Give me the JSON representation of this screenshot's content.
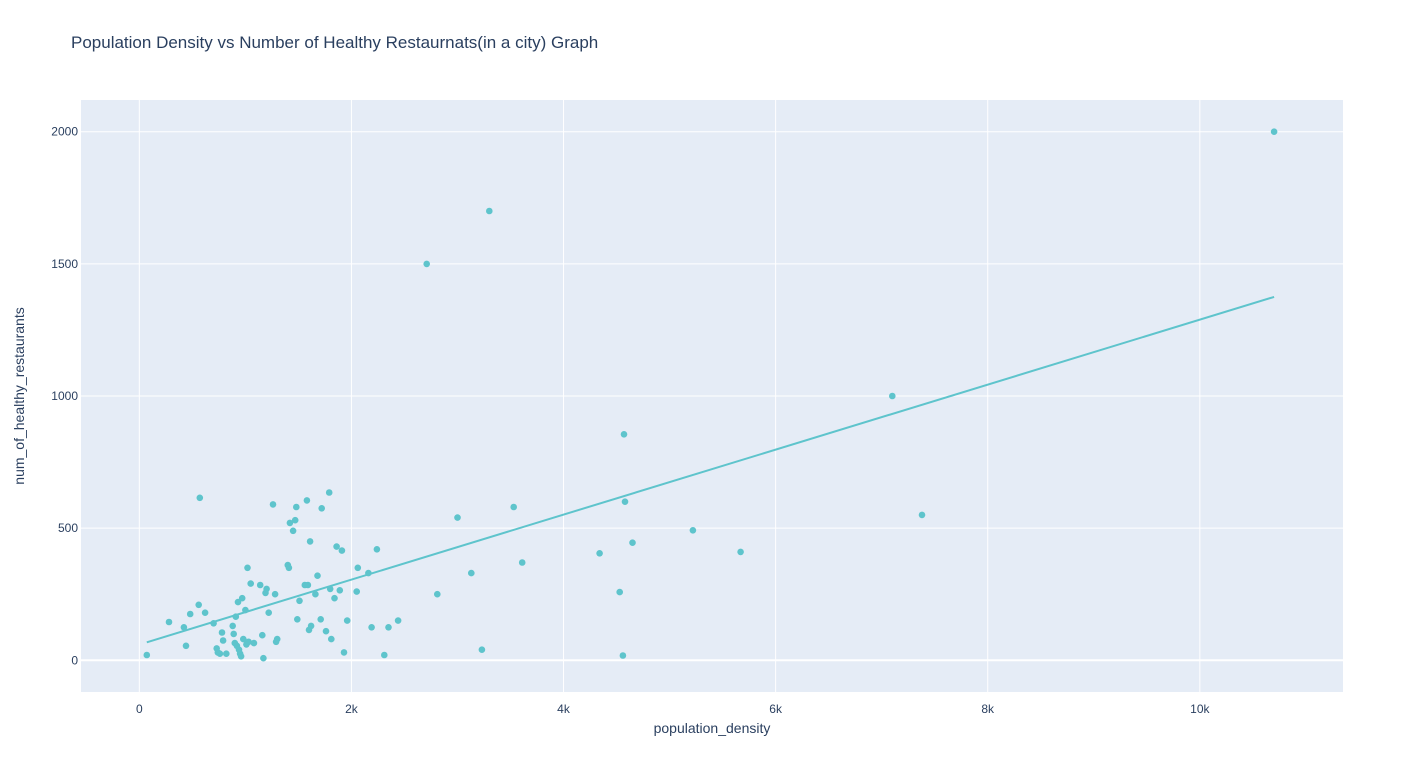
{
  "chart_data": {
    "type": "scatter",
    "title": "Population Density vs Number of Healthy Restaurnats(in a city) Graph",
    "xlabel": "population_density",
    "ylabel": "num_of_healthy_restaurants",
    "xlim": [
      -550,
      11350
    ],
    "ylim": [
      -120,
      2120
    ],
    "x_ticks": [
      0,
      2000,
      4000,
      6000,
      8000,
      10000
    ],
    "x_tick_labels": [
      "0",
      "2k",
      "4k",
      "6k",
      "8k",
      "10k"
    ],
    "y_ticks": [
      0,
      500,
      1000,
      1500,
      2000
    ],
    "y_tick_labels": [
      "0",
      "500",
      "1000",
      "1500",
      "2000"
    ],
    "grid": true,
    "legend": "none",
    "colors": {
      "marker": "#5ec4cc",
      "line": "#5ec4cc",
      "plot_bg": "#e5ecf6",
      "grid": "#ffffff"
    },
    "trendline": {
      "x": [
        70,
        10700
      ],
      "y": [
        68,
        1375
      ]
    },
    "x": [
      70,
      280,
      420,
      440,
      480,
      560,
      570,
      620,
      700,
      730,
      740,
      760,
      780,
      790,
      820,
      880,
      890,
      900,
      910,
      920,
      930,
      940,
      950,
      960,
      970,
      980,
      1000,
      1010,
      1020,
      1030,
      1050,
      1080,
      1140,
      1160,
      1170,
      1190,
      1200,
      1220,
      1260,
      1280,
      1290,
      1300,
      1400,
      1410,
      1420,
      1450,
      1470,
      1480,
      1490,
      1510,
      1560,
      1580,
      1590,
      1600,
      1610,
      1620,
      1660,
      1680,
      1710,
      1720,
      1760,
      1790,
      1800,
      1810,
      1840,
      1860,
      1890,
      1910,
      1930,
      1960,
      2050,
      2060,
      2160,
      2190,
      2240,
      2310,
      2350,
      2440,
      2710,
      2810,
      3000,
      3130,
      3230,
      3300,
      3530,
      3610,
      4340,
      4530,
      4560,
      4570,
      4580,
      4650,
      5220,
      5670,
      7100,
      7380,
      10700
    ],
    "y": [
      20,
      145,
      125,
      55,
      175,
      210,
      615,
      180,
      140,
      45,
      30,
      25,
      105,
      75,
      25,
      130,
      100,
      65,
      165,
      55,
      220,
      40,
      25,
      15,
      235,
      80,
      190,
      60,
      350,
      70,
      290,
      65,
      285,
      95,
      8,
      255,
      270,
      180,
      590,
      250,
      70,
      80,
      360,
      350,
      520,
      490,
      530,
      580,
      155,
      225,
      285,
      605,
      285,
      115,
      450,
      130,
      250,
      320,
      155,
      575,
      110,
      635,
      270,
      80,
      235,
      430,
      265,
      415,
      30,
      150,
      260,
      350,
      330,
      125,
      420,
      20,
      125,
      150,
      1500,
      250,
      540,
      330,
      40,
      1700,
      580,
      370,
      405,
      258,
      18,
      855,
      600,
      445,
      492,
      410,
      1000,
      550,
      2000
    ]
  }
}
